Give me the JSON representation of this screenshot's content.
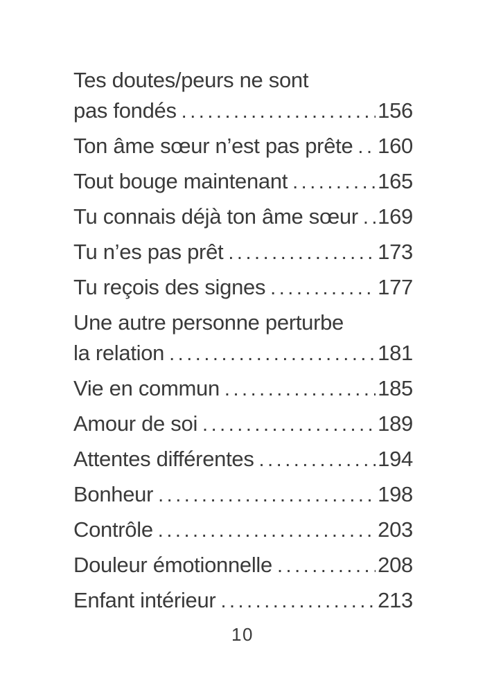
{
  "page": {
    "colors": {
      "ink": "#3a3a3a",
      "background": "#ffffff"
    },
    "folio": "10",
    "toc_rows": [
      {
        "text": "Tes doutes/peurs ne sont"
      },
      {
        "text": "pas fondés",
        "page": "156"
      },
      {
        "text": "Ton âme sœur n’est pas prête",
        "page": "160"
      },
      {
        "text": "Tout bouge maintenant",
        "page": "165"
      },
      {
        "text": "Tu connais déjà ton âme sœur",
        "page": "169"
      },
      {
        "text": "Tu n’es pas prêt",
        "page": "173"
      },
      {
        "text": "Tu reçois des signes",
        "page": "177"
      },
      {
        "text": "Une autre personne perturbe"
      },
      {
        "text": "la relation",
        "page": "181"
      },
      {
        "text": "Vie en commun",
        "page": "185"
      },
      {
        "text": "Amour de soi",
        "page": "189"
      },
      {
        "text": "Attentes différentes",
        "page": "194"
      },
      {
        "text": "Bonheur",
        "page": "198"
      },
      {
        "text": "Contrôle",
        "page": "203"
      },
      {
        "text": "Douleur émotionnelle",
        "page": "208"
      },
      {
        "text": "Enfant intérieur",
        "page": "213"
      }
    ]
  }
}
